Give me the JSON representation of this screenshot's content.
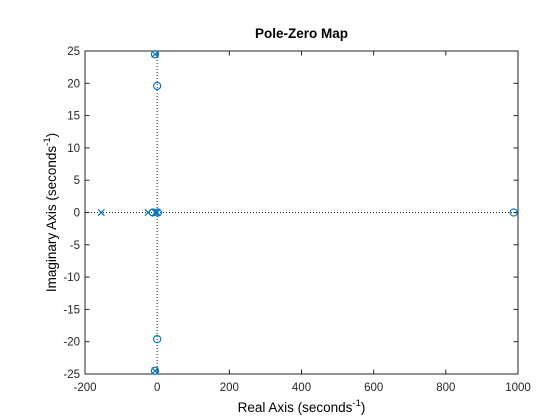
{
  "chart_data": {
    "type": "scatter",
    "title": "Pole-Zero Map",
    "xlabel": {
      "text": "Real Axis (seconds",
      "sup": "-1",
      "close": ")"
    },
    "ylabel": {
      "text": "Imaginary Axis (seconds",
      "sup": "-1",
      "close": ")"
    },
    "xlim": [
      -200,
      1000
    ],
    "ylim": [
      -25,
      25
    ],
    "xticks": [
      -200,
      0,
      200,
      400,
      600,
      800,
      1000
    ],
    "yticks": [
      -25,
      -20,
      -15,
      -10,
      -5,
      0,
      5,
      10,
      15,
      20,
      25
    ],
    "grid": false,
    "reference_lines": {
      "x": 0,
      "y": 0,
      "style": "dotted"
    },
    "series": [
      {
        "marker": "x",
        "points": [
          {
            "x": -155,
            "y": 0
          },
          {
            "x": -25,
            "y": 0
          },
          {
            "x": -5,
            "y": 0
          },
          {
            "x": 0,
            "y": 0
          },
          {
            "x": -6,
            "y": 24.5
          },
          {
            "x": -6,
            "y": -24.5
          }
        ]
      },
      {
        "marker": "o",
        "points": [
          {
            "x": 988,
            "y": 0
          },
          {
            "x": -12,
            "y": 0
          },
          {
            "x": 2,
            "y": 0
          },
          {
            "x": 0,
            "y": 19.6
          },
          {
            "x": 0,
            "y": -19.6
          },
          {
            "x": -6,
            "y": 24.5
          },
          {
            "x": -6,
            "y": -24.5
          }
        ]
      }
    ]
  },
  "colors": {
    "marker": "#0072BD",
    "axis": "#262626",
    "reference_line": "#262626",
    "background": "#FFFFFF"
  }
}
